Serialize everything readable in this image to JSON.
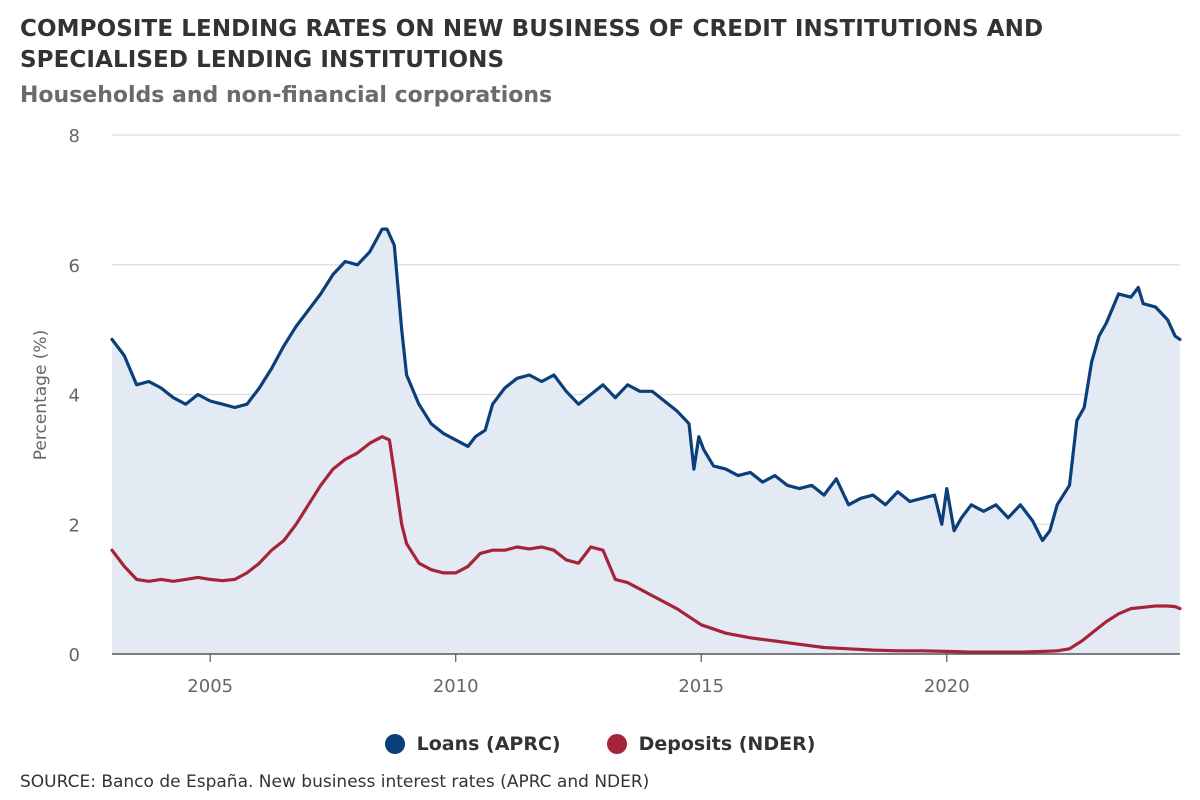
{
  "header": {
    "title": "COMPOSITE LENDING RATES ON NEW BUSINESS OF CREDIT INSTITUTIONS AND SPECIALISED LENDING INSTITUTIONS",
    "subtitle": "Households and non-financial corporations"
  },
  "source": "SOURCE: Banco de España. New business interest rates (APRC and NDER)",
  "colors": {
    "loans": "#0b3f7a",
    "deposits": "#a6243a",
    "area": "#e4eaf3",
    "grid": "#dddddd"
  },
  "chart_data": {
    "type": "line",
    "title": "COMPOSITE LENDING RATES ON NEW BUSINESS OF CREDIT INSTITUTIONS AND SPECIALISED LENDING INSTITUTIONS",
    "subtitle": "Households and non-financial corporations",
    "xlabel": "",
    "ylabel": "Percentage (%)",
    "xlim": [
      2003.0,
      2024.75
    ],
    "ylim": [
      0,
      8
    ],
    "x_ticks": [
      2005,
      2010,
      2015,
      2020
    ],
    "y_ticks": [
      0,
      2,
      4,
      6,
      8
    ],
    "grid": true,
    "legend_position": "bottom",
    "series": [
      {
        "name": "Loans (APRC)",
        "color": "#0b3f7a",
        "area_fill": true,
        "x": [
          2003.0,
          2003.25,
          2003.5,
          2003.75,
          2004.0,
          2004.25,
          2004.5,
          2004.75,
          2005.0,
          2005.25,
          2005.5,
          2005.75,
          2006.0,
          2006.25,
          2006.5,
          2006.75,
          2007.0,
          2007.25,
          2007.5,
          2007.75,
          2008.0,
          2008.25,
          2008.5,
          2008.6,
          2008.75,
          2008.9,
          2009.0,
          2009.25,
          2009.5,
          2009.75,
          2010.0,
          2010.25,
          2010.4,
          2010.6,
          2010.75,
          2011.0,
          2011.25,
          2011.5,
          2011.75,
          2012.0,
          2012.25,
          2012.5,
          2012.75,
          2013.0,
          2013.25,
          2013.5,
          2013.75,
          2014.0,
          2014.25,
          2014.5,
          2014.75,
          2014.85,
          2014.95,
          2015.05,
          2015.25,
          2015.5,
          2015.75,
          2016.0,
          2016.25,
          2016.5,
          2016.75,
          2017.0,
          2017.25,
          2017.5,
          2017.75,
          2018.0,
          2018.25,
          2018.5,
          2018.75,
          2019.0,
          2019.25,
          2019.5,
          2019.75,
          2019.9,
          2020.0,
          2020.15,
          2020.3,
          2020.5,
          2020.75,
          2021.0,
          2021.25,
          2021.5,
          2021.75,
          2021.95,
          2022.1,
          2022.25,
          2022.5,
          2022.65,
          2022.8,
          2022.95,
          2023.1,
          2023.25,
          2023.5,
          2023.75,
          2023.9,
          2024.0,
          2024.25,
          2024.5,
          2024.65,
          2024.75
        ],
        "values": [
          4.85,
          4.6,
          4.15,
          4.2,
          4.1,
          3.95,
          3.85,
          4.0,
          3.9,
          3.85,
          3.8,
          3.85,
          4.1,
          4.4,
          4.75,
          5.05,
          5.3,
          5.55,
          5.85,
          6.05,
          6.0,
          6.2,
          6.55,
          6.55,
          6.3,
          5.0,
          4.3,
          3.85,
          3.55,
          3.4,
          3.3,
          3.2,
          3.35,
          3.45,
          3.85,
          4.1,
          4.25,
          4.3,
          4.2,
          4.3,
          4.05,
          3.85,
          4.0,
          4.15,
          3.95,
          4.15,
          4.05,
          4.05,
          3.9,
          3.75,
          3.55,
          2.85,
          3.35,
          3.15,
          2.9,
          2.85,
          2.75,
          2.8,
          2.65,
          2.75,
          2.6,
          2.55,
          2.6,
          2.45,
          2.7,
          2.3,
          2.4,
          2.45,
          2.3,
          2.5,
          2.35,
          2.4,
          2.45,
          2.0,
          2.55,
          1.9,
          2.1,
          2.3,
          2.2,
          2.3,
          2.1,
          2.3,
          2.05,
          1.75,
          1.9,
          2.3,
          2.6,
          3.6,
          3.8,
          4.5,
          4.9,
          5.1,
          5.55,
          5.5,
          5.65,
          5.4,
          5.35,
          5.15,
          4.9,
          4.85
        ]
      },
      {
        "name": "Deposits (NDER)",
        "color": "#a6243a",
        "area_fill": false,
        "x": [
          2003.0,
          2003.25,
          2003.5,
          2003.75,
          2004.0,
          2004.25,
          2004.5,
          2004.75,
          2005.0,
          2005.25,
          2005.5,
          2005.75,
          2006.0,
          2006.25,
          2006.5,
          2006.75,
          2007.0,
          2007.25,
          2007.5,
          2007.75,
          2008.0,
          2008.25,
          2008.5,
          2008.65,
          2008.75,
          2008.9,
          2009.0,
          2009.25,
          2009.5,
          2009.75,
          2010.0,
          2010.25,
          2010.5,
          2010.75,
          2011.0,
          2011.25,
          2011.5,
          2011.75,
          2012.0,
          2012.25,
          2012.5,
          2012.75,
          2013.0,
          2013.25,
          2013.5,
          2013.75,
          2014.0,
          2014.5,
          2015.0,
          2015.5,
          2016.0,
          2016.5,
          2017.0,
          2017.5,
          2018.0,
          2018.5,
          2019.0,
          2019.5,
          2020.0,
          2020.5,
          2021.0,
          2021.5,
          2022.0,
          2022.25,
          2022.5,
          2022.75,
          2023.0,
          2023.25,
          2023.5,
          2023.75,
          2024.0,
          2024.25,
          2024.5,
          2024.65,
          2024.75
        ],
        "values": [
          1.6,
          1.35,
          1.15,
          1.12,
          1.15,
          1.12,
          1.15,
          1.18,
          1.15,
          1.13,
          1.15,
          1.25,
          1.4,
          1.6,
          1.75,
          2.0,
          2.3,
          2.6,
          2.85,
          3.0,
          3.1,
          3.25,
          3.35,
          3.3,
          2.8,
          2.0,
          1.7,
          1.4,
          1.3,
          1.25,
          1.25,
          1.35,
          1.55,
          1.6,
          1.6,
          1.65,
          1.62,
          1.65,
          1.6,
          1.45,
          1.4,
          1.65,
          1.6,
          1.15,
          1.1,
          1.0,
          0.9,
          0.7,
          0.45,
          0.32,
          0.25,
          0.2,
          0.15,
          0.1,
          0.08,
          0.06,
          0.05,
          0.05,
          0.04,
          0.03,
          0.03,
          0.03,
          0.04,
          0.05,
          0.08,
          0.2,
          0.35,
          0.5,
          0.62,
          0.7,
          0.72,
          0.74,
          0.74,
          0.73,
          0.7
        ]
      }
    ]
  }
}
